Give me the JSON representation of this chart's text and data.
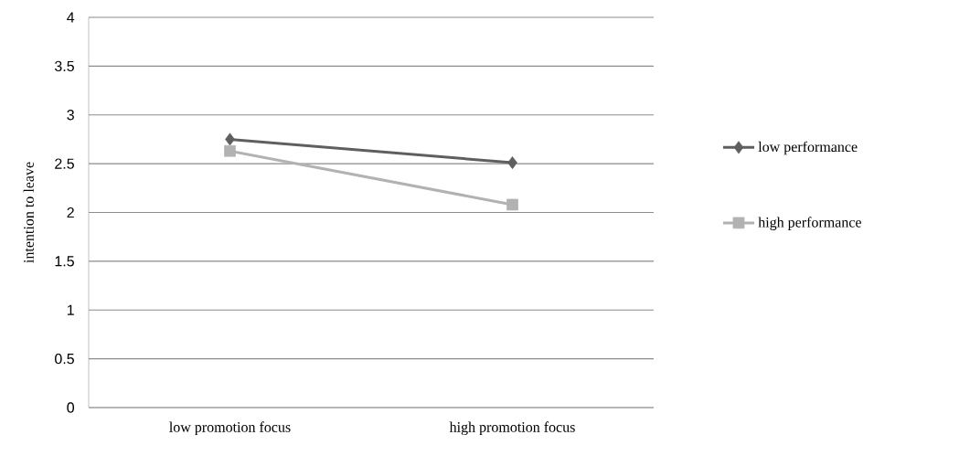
{
  "chart_data": {
    "type": "line",
    "ylabel": "intention to leave",
    "categories": [
      "low promotion focus",
      "high promotion focus"
    ],
    "series": [
      {
        "name": "low performance",
        "color": "#5f5f5f",
        "marker": "diamond",
        "values": [
          2.75,
          2.51
        ]
      },
      {
        "name": "high performance",
        "color": "#b2b2b2",
        "marker": "square",
        "values": [
          2.63,
          2.08
        ]
      }
    ],
    "ylim": [
      0,
      4
    ],
    "yticks": [
      0,
      0.5,
      1,
      1.5,
      2,
      2.5,
      3,
      3.5,
      4
    ],
    "grid": "y",
    "legend": "right",
    "line_style": "solid"
  }
}
